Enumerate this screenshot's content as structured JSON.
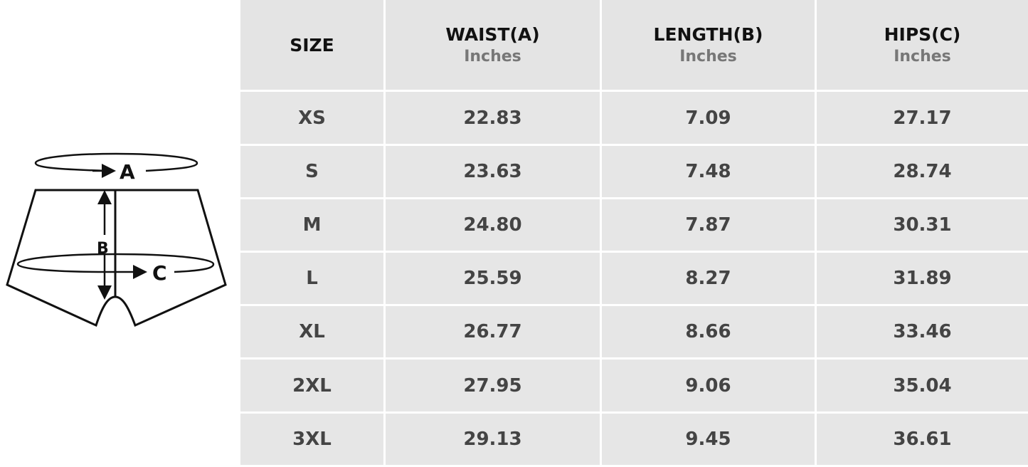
{
  "diagram": {
    "label_a": "A",
    "label_b": "B",
    "label_c": "C"
  },
  "table": {
    "headers": [
      {
        "title": "SIZE",
        "unit": ""
      },
      {
        "title": "WAIST(A)",
        "unit": "Inches"
      },
      {
        "title": "LENGTH(B)",
        "unit": "Inches"
      },
      {
        "title": "HIPS(C)",
        "unit": "Inches"
      }
    ],
    "rows": [
      [
        "XS",
        "22.83",
        "7.09",
        "27.17"
      ],
      [
        "S",
        "23.63",
        "7.48",
        "28.74"
      ],
      [
        "M",
        "24.80",
        "7.87",
        "30.31"
      ],
      [
        "L",
        "25.59",
        "8.27",
        "31.89"
      ],
      [
        "XL",
        "26.77",
        "8.66",
        "33.46"
      ],
      [
        "2XL",
        "27.95",
        "9.06",
        "35.04"
      ],
      [
        "3XL",
        "29.13",
        "9.45",
        "36.61"
      ]
    ]
  }
}
